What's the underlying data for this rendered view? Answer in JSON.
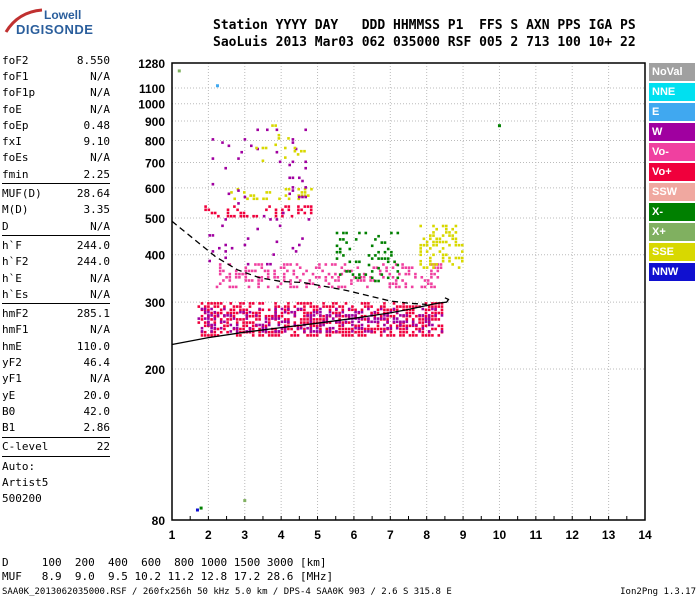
{
  "logo": {
    "line1": "Lowell",
    "line2": "DIGISONDE"
  },
  "header": {
    "row1": "Station YYYY DAY   DDD HHMMSS P1  FFS S AXN PPS IGA PS",
    "row2": "SaoLuis 2013 Mar03 062 035000 RSF 005 2 713 100 10+ 22"
  },
  "parameters": [
    {
      "label": "foF2",
      "value": "8.550"
    },
    {
      "label": "foF1",
      "value": "N/A"
    },
    {
      "label": "foF1p",
      "value": "N/A"
    },
    {
      "label": "foE",
      "value": "N/A"
    },
    {
      "label": "foEp",
      "value": "0.48"
    },
    {
      "label": "fxI",
      "value": "9.10"
    },
    {
      "label": "foEs",
      "value": "N/A"
    },
    {
      "label": "fmin",
      "value": "2.25"
    },
    {
      "label": "MUF(D)",
      "value": "28.64",
      "sep": true
    },
    {
      "label": "M(D)",
      "value": "3.35"
    },
    {
      "label": "D",
      "value": "N/A"
    },
    {
      "label": "h`F",
      "value": "244.0",
      "sep": true
    },
    {
      "label": "h`F2",
      "value": "244.0"
    },
    {
      "label": "h`E",
      "value": "N/A"
    },
    {
      "label": "h`Es",
      "value": "N/A"
    },
    {
      "label": "hmF2",
      "value": "285.1",
      "sep": true
    },
    {
      "label": "hmF1",
      "value": "N/A"
    },
    {
      "label": "hmE",
      "value": "110.0"
    },
    {
      "label": "yF2",
      "value": "46.4"
    },
    {
      "label": "yF1",
      "value": "N/A"
    },
    {
      "label": "yE",
      "value": "20.0"
    },
    {
      "label": "B0",
      "value": "42.0"
    },
    {
      "label": "B1",
      "value": "2.86"
    },
    {
      "label": "C-level",
      "value": "22",
      "sep": true
    },
    {
      "label": "Auto:",
      "value": "",
      "sep": true
    },
    {
      "label": "Artist5",
      "value": ""
    },
    {
      "label": "500200",
      "value": ""
    }
  ],
  "bottom_table": {
    "row1": "D     100  200  400  600  800 1000 1500 3000 [km]",
    "row2": "MUF   8.9  9.0  9.5 10.2 11.2 12.8 17.2 28.6 [MHz]"
  },
  "footer": {
    "left": "SAA0K_2013062035000.RSF / 260fx256h 50 kHz 5.0 km / DPS-4 SAA0K 903 / 2.6 S 315.8 E",
    "right": "Ion2Png 1.3.17"
  },
  "legend": [
    {
      "label": "NoVal",
      "color": "#a0a0a0"
    },
    {
      "label": "NNE",
      "color": "#00e0f0"
    },
    {
      "label": "E",
      "color": "#40a8f0"
    },
    {
      "label": "W",
      "color": "#a000a0"
    },
    {
      "label": "Vo-",
      "color": "#f040a0"
    },
    {
      "label": "Vo+",
      "color": "#f0003c"
    },
    {
      "label": "SSW",
      "color": "#f0a8a0"
    },
    {
      "label": "X-",
      "color": "#008000"
    },
    {
      "label": "X+",
      "color": "#80b060"
    },
    {
      "label": "SSE",
      "color": "#d8d800"
    },
    {
      "label": "NNW",
      "color": "#1010d0"
    }
  ],
  "chart_data": {
    "type": "scatter",
    "title": "",
    "xlabel": "",
    "ylabel": "",
    "xlim": [
      1,
      14
    ],
    "ylim": [
      80,
      1280
    ],
    "x_ticks": [
      1,
      2,
      3,
      4,
      5,
      6,
      7,
      8,
      9,
      10,
      11,
      12,
      13,
      14
    ],
    "y_ticks": [
      80,
      200,
      300,
      400,
      500,
      600,
      700,
      800,
      900,
      1000,
      1100,
      1280
    ],
    "y_scale": "log",
    "grid": true,
    "curves": [
      {
        "name": "profile",
        "points": [
          [
            1.0,
            232
          ],
          [
            2.0,
            242
          ],
          [
            3.0,
            250
          ],
          [
            4.0,
            257
          ],
          [
            5.0,
            264
          ],
          [
            6.0,
            272
          ],
          [
            7.0,
            281
          ],
          [
            7.5,
            287
          ],
          [
            8.0,
            294
          ],
          [
            8.3,
            298
          ],
          [
            8.55,
            300
          ],
          [
            8.6,
            305
          ],
          [
            8.5,
            308
          ]
        ]
      },
      {
        "name": "dashed",
        "dashed": true,
        "points": [
          [
            1.0,
            490
          ],
          [
            1.6,
            440
          ],
          [
            2.2,
            395
          ],
          [
            2.8,
            365
          ],
          [
            3.4,
            348
          ],
          [
            4.0,
            340
          ],
          [
            4.6,
            338
          ],
          [
            5.2,
            330
          ],
          [
            5.8,
            322
          ],
          [
            6.4,
            312
          ],
          [
            7.0,
            302
          ],
          [
            7.5,
            298
          ],
          [
            8.0,
            296
          ]
        ]
      }
    ],
    "echo_clusters": [
      {
        "xmin": 1.7,
        "xmax": 8.4,
        "hmin": 245,
        "hmax": 300,
        "color": "#f0003c",
        "density": 0.55
      },
      {
        "xmin": 1.7,
        "xmax": 8.4,
        "hmin": 250,
        "hmax": 290,
        "color": "#a000a0",
        "density": 0.35
      },
      {
        "xmin": 2.2,
        "xmax": 8.4,
        "hmin": 330,
        "hmax": 380,
        "color": "#f040a0",
        "density": 0.3
      },
      {
        "xmin": 1.8,
        "xmax": 4.8,
        "hmin": 500,
        "hmax": 540,
        "color": "#f0003c",
        "density": 0.3
      },
      {
        "xmin": 2.6,
        "xmax": 4.8,
        "hmin": 560,
        "hmax": 600,
        "color": "#d8d800",
        "density": 0.25
      },
      {
        "xmin": 7.8,
        "xmax": 9.0,
        "hmin": 370,
        "hmax": 480,
        "color": "#d8d800",
        "density": 0.4
      },
      {
        "xmin": 5.5,
        "xmax": 7.2,
        "hmin": 340,
        "hmax": 460,
        "color": "#008000",
        "density": 0.2
      },
      {
        "xmin": 2.0,
        "xmax": 4.8,
        "hmin": 380,
        "hmax": 860,
        "color": "#a000a0",
        "density": 0.05
      },
      {
        "xmin": 3.2,
        "xmax": 4.8,
        "hmin": 700,
        "hmax": 900,
        "color": "#d8d800",
        "density": 0.05
      }
    ],
    "isolated_points": [
      {
        "x": 1.2,
        "y": 1220,
        "color": "#80b060"
      },
      {
        "x": 2.25,
        "y": 1115,
        "color": "#40a8f0"
      },
      {
        "x": 10.0,
        "y": 875,
        "color": "#008000"
      },
      {
        "x": 1.7,
        "y": 85,
        "color": "#1010d0"
      },
      {
        "x": 1.8,
        "y": 86,
        "color": "#008000"
      },
      {
        "x": 3.0,
        "y": 90,
        "color": "#80b060"
      }
    ]
  }
}
